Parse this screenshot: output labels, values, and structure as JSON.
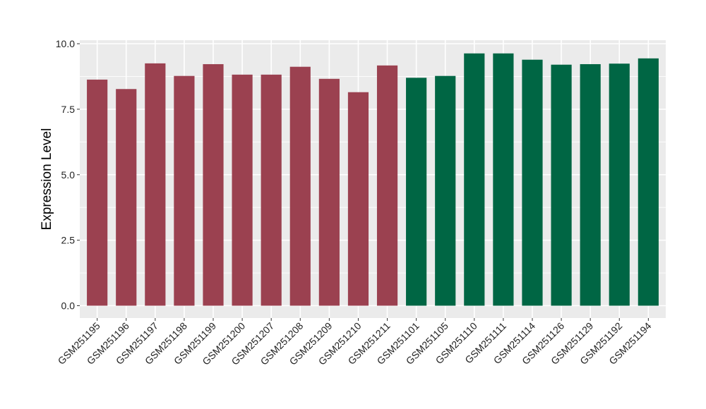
{
  "chart_data": {
    "type": "bar",
    "title": "",
    "xlabel": "",
    "ylabel": "Expression Level",
    "ylim": [
      -0.5,
      10.05
    ],
    "yticks": [
      0.0,
      2.5,
      5.0,
      7.5,
      10.0
    ],
    "ytick_labels": [
      "0.0",
      "2.5",
      "5.0",
      "7.5",
      "10.0"
    ],
    "grid": true,
    "legend": "none",
    "background_color": "#ebebeb",
    "grid_color": "#ffffff",
    "group_colors": {
      "group1": "#9b4150",
      "group2": "#006644"
    },
    "categories": [
      "GSM251195",
      "GSM251196",
      "GSM251197",
      "GSM251198",
      "GSM251199",
      "GSM251200",
      "GSM251207",
      "GSM251208",
      "GSM251209",
      "GSM251210",
      "GSM251211",
      "GSM251101",
      "GSM251105",
      "GSM251110",
      "GSM251111",
      "GSM251114",
      "GSM251126",
      "GSM251129",
      "GSM251192",
      "GSM251194"
    ],
    "values": [
      8.63,
      8.27,
      9.25,
      8.77,
      9.22,
      8.82,
      8.82,
      9.12,
      8.66,
      8.15,
      9.17,
      8.7,
      8.77,
      9.63,
      9.63,
      9.39,
      9.2,
      9.22,
      9.24,
      9.44
    ],
    "groups": [
      "group1",
      "group1",
      "group1",
      "group1",
      "group1",
      "group1",
      "group1",
      "group1",
      "group1",
      "group1",
      "group1",
      "group2",
      "group2",
      "group2",
      "group2",
      "group2",
      "group2",
      "group2",
      "group2",
      "group2"
    ]
  }
}
